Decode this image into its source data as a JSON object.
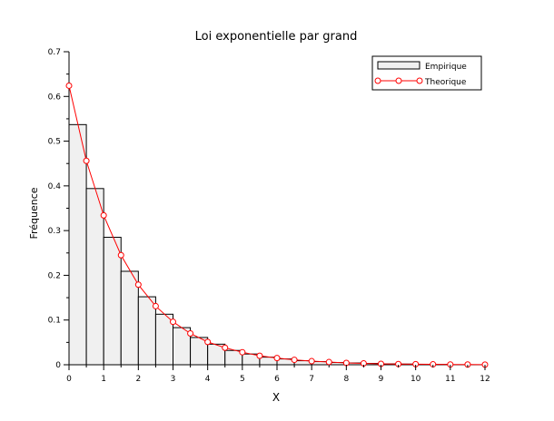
{
  "chart_data": {
    "type": "bar",
    "title": "Loi exponentielle par grand",
    "xlabel": "X",
    "ylabel": "Fréquence",
    "xlim": [
      0,
      12
    ],
    "ylim": [
      0,
      0.7
    ],
    "x_ticks": [
      "0",
      "1",
      "2",
      "3",
      "4",
      "5",
      "6",
      "7",
      "8",
      "9",
      "10",
      "11",
      "12"
    ],
    "y_ticks": [
      "0",
      "0.1",
      "0.2",
      "0.3",
      "0.4",
      "0.5",
      "0.6",
      "0.7"
    ],
    "bin_width": 0.5,
    "legend_position": "top-right",
    "grid": false,
    "series": [
      {
        "name": "Empirique",
        "kind": "histogram",
        "color": "#000000",
        "fill": "#f0f0f0",
        "x": [
          0,
          0.5,
          1,
          1.5,
          2,
          2.5,
          3,
          3.5,
          4,
          4.5,
          5,
          5.5,
          6,
          6.5,
          7,
          7.5,
          8,
          8.5,
          9,
          9.5,
          10,
          10.5
        ],
        "values": [
          0.537,
          0.394,
          0.285,
          0.209,
          0.152,
          0.113,
          0.083,
          0.061,
          0.046,
          0.032,
          0.024,
          0.017,
          0.013,
          0.009,
          0.007,
          0.005,
          0.004,
          0.003,
          0.002,
          0.0015,
          0.001,
          0.0008
        ]
      },
      {
        "name": "Theorique",
        "kind": "line-marker",
        "color": "#ff0000",
        "x": [
          0,
          0.5,
          1,
          1.5,
          2,
          2.5,
          3,
          3.5,
          4,
          4.5,
          5,
          5.5,
          6,
          6.5,
          7,
          7.5,
          8,
          8.5,
          9,
          9.5,
          10,
          10.5,
          11,
          11.5,
          12
        ],
        "values": [
          0.624,
          0.456,
          0.334,
          0.245,
          0.179,
          0.131,
          0.096,
          0.07,
          0.051,
          0.038,
          0.028,
          0.02,
          0.015,
          0.011,
          0.008,
          0.006,
          0.004,
          0.003,
          0.002,
          0.0016,
          0.0012,
          0.0009,
          0.0006,
          0.0005,
          0.0003
        ]
      }
    ]
  }
}
